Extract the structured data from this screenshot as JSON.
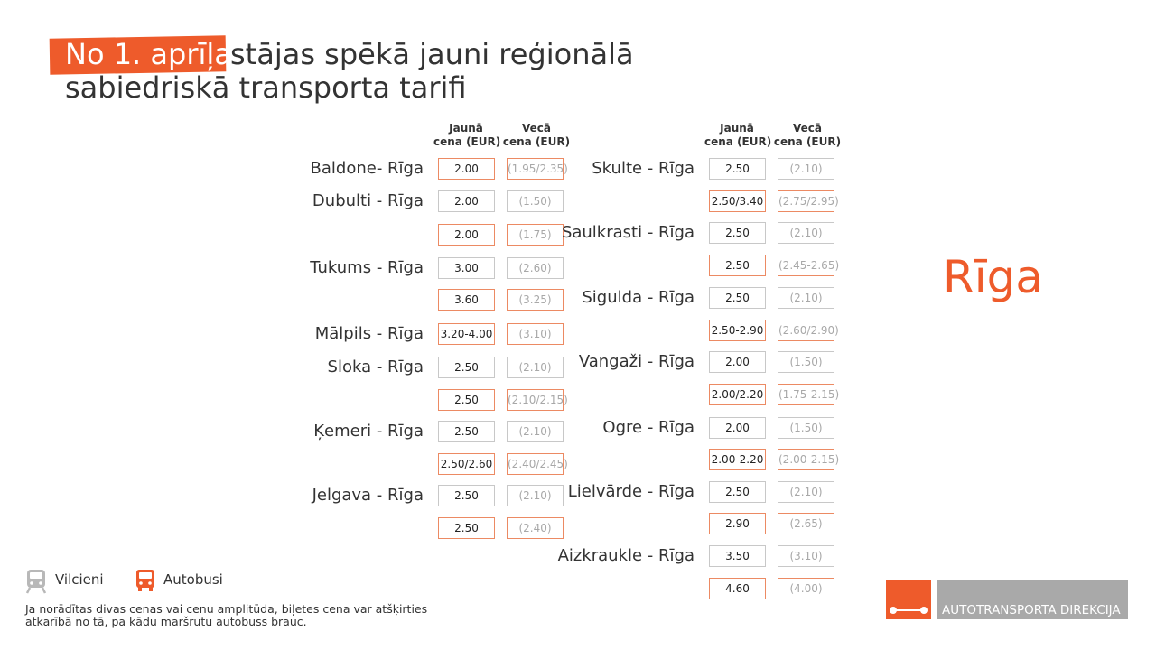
{
  "title": {
    "highlight": "No 1. aprīļa",
    "rest": "stājas spēkā jauni reģionālā",
    "line2": "sabiedriskā transporta tarifi"
  },
  "headers": {
    "new": [
      "Jaunā",
      "cena (EUR)"
    ],
    "old": [
      "Vecā",
      "cena (EUR)"
    ]
  },
  "city": "Rīga",
  "left_routes": [
    {
      "name": "Baldone- Rīga",
      "rows": [
        {
          "new": "2.00",
          "old": "(1.95/2.35)",
          "mode": "bus"
        }
      ]
    },
    {
      "name": "Dubulti - Rīga",
      "rows": [
        {
          "new": "2.00",
          "old": "(1.50)",
          "mode": "train"
        },
        {
          "new": "2.00",
          "old": "(1.75)",
          "mode": "bus"
        }
      ]
    },
    {
      "name": "Tukums - Rīga",
      "rows": [
        {
          "new": "3.00",
          "old": "(2.60)",
          "mode": "train"
        },
        {
          "new": "3.60",
          "old": "(3.25)",
          "mode": "bus"
        }
      ]
    },
    {
      "name": "Mālpils - Rīga",
      "rows": [
        {
          "new": "3.20-4.00",
          "old": "(3.10)",
          "mode": "bus"
        }
      ]
    },
    {
      "name": "Sloka - Rīga",
      "rows": [
        {
          "new": "2.50",
          "old": "(2.10)",
          "mode": "train"
        },
        {
          "new": "2.50",
          "old": "(2.10/2.15)",
          "mode": "bus"
        }
      ]
    },
    {
      "name": "Ķemeri - Rīga",
      "rows": [
        {
          "new": "2.50",
          "old": "(2.10)",
          "mode": "train"
        },
        {
          "new": "2.50/2.60",
          "old": "(2.40/2.45)",
          "mode": "bus"
        }
      ]
    },
    {
      "name": "Jelgava - Rīga",
      "rows": [
        {
          "new": "2.50",
          "old": "(2.10)",
          "mode": "train"
        },
        {
          "new": "2.50",
          "old": "(2.40)",
          "mode": "bus"
        }
      ]
    }
  ],
  "right_routes": [
    {
      "name": "Skulte - Rīga",
      "rows": [
        {
          "new": "2.50",
          "old": "(2.10)",
          "mode": "train"
        },
        {
          "new": "2.50/3.40",
          "old": "(2.75/2.95)",
          "mode": "bus"
        }
      ]
    },
    {
      "name": "Saulkrasti - Rīga",
      "rows": [
        {
          "new": "2.50",
          "old": "(2.10)",
          "mode": "train"
        },
        {
          "new": "2.50",
          "old": "(2.45-2.65)",
          "mode": "bus"
        }
      ]
    },
    {
      "name": "Sigulda - Rīga",
      "rows": [
        {
          "new": "2.50",
          "old": "(2.10)",
          "mode": "train"
        },
        {
          "new": "2.50-2.90",
          "old": "(2.60/2.90)",
          "mode": "bus"
        }
      ]
    },
    {
      "name": "Vangaži - Rīga",
      "rows": [
        {
          "new": "2.00",
          "old": "(1.50)",
          "mode": "train"
        },
        {
          "new": "2.00/2.20",
          "old": "(1.75-2.15)",
          "mode": "bus"
        }
      ]
    },
    {
      "name": "Ogre - Rīga",
      "rows": [
        {
          "new": "2.00",
          "old": "(1.50)",
          "mode": "train"
        },
        {
          "new": "2.00-2.20",
          "old": "(2.00-2.15)",
          "mode": "bus"
        }
      ]
    },
    {
      "name": "Lielvārde - Rīga",
      "rows": [
        {
          "new": "2.50",
          "old": "(2.10)",
          "mode": "train"
        },
        {
          "new": "2.90",
          "old": "(2.65)",
          "mode": "bus"
        }
      ]
    },
    {
      "name": "Aizkraukle - Rīga",
      "rows": [
        {
          "new": "3.50",
          "old": "(3.10)",
          "mode": "train"
        },
        {
          "new": "4.60",
          "old": "(4.00)",
          "mode": "bus"
        }
      ]
    }
  ],
  "legend": {
    "train": {
      "label": "Vilcieni",
      "icon": "train-icon"
    },
    "bus": {
      "label": "Autobusi",
      "icon": "bus-icon"
    }
  },
  "footnote": "Ja norādītas divas cenas vai cenu amplitūda, biļetes cena var atšķirties atkarībā no tā, pa kādu maršrutu autobuss brauc.",
  "logo_text": "AUTOTRANSPORTA DIREKCIJA",
  "colors": {
    "accent": "#ee5b2b",
    "logo_gray": "#a9a9a9"
  }
}
